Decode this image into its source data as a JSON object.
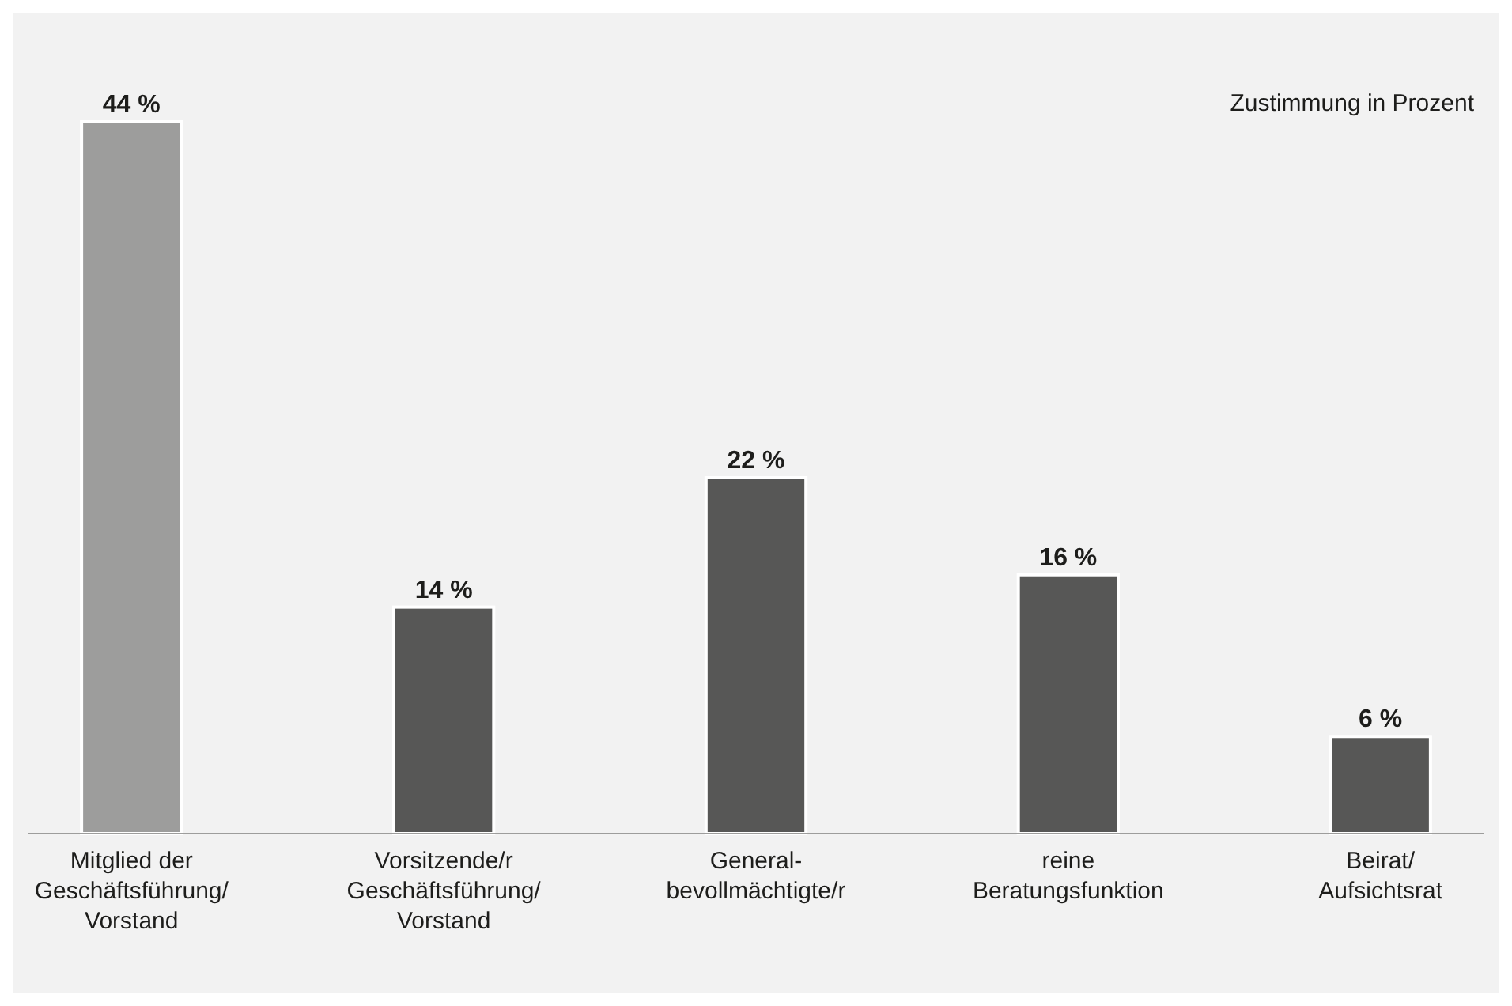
{
  "chart_data": {
    "type": "bar",
    "categories": [
      "Mitglied der\nGeschäftsführung/\nVorstand",
      "Vorsitzende/r\nGeschäftsführung/\nVorstand",
      "General-\nbevollmächtigte/r",
      "reine\nBeratungsfunktion",
      "Beirat/\nAufsichtsrat"
    ],
    "values": [
      44,
      14,
      22,
      16,
      6
    ],
    "colors": [
      "#9d9d9c",
      "#575756",
      "#575756",
      "#575756",
      "#575756"
    ],
    "value_labels": [
      "44 %",
      "14 %",
      "22 %",
      "16 %",
      "6 %"
    ],
    "annotations": [
      "Zustimmung in Prozent"
    ]
  }
}
